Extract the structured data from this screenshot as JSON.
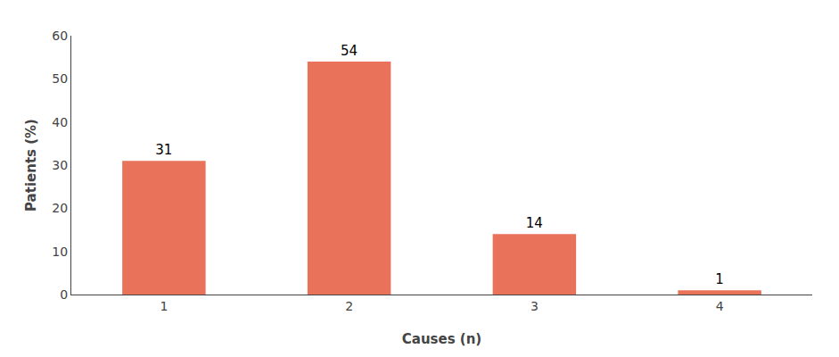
{
  "chart_data": {
    "type": "bar",
    "categories": [
      "1",
      "2",
      "3",
      "4"
    ],
    "values": [
      31,
      54,
      14,
      1
    ],
    "color": "#E8735A",
    "xlabel": "Causes (n)",
    "ylabel": "Patients (%)",
    "ylim": [
      0,
      60
    ],
    "yticks": [
      0,
      10,
      20,
      30,
      40,
      50,
      60
    ],
    "data_labels": true,
    "grid": false
  }
}
